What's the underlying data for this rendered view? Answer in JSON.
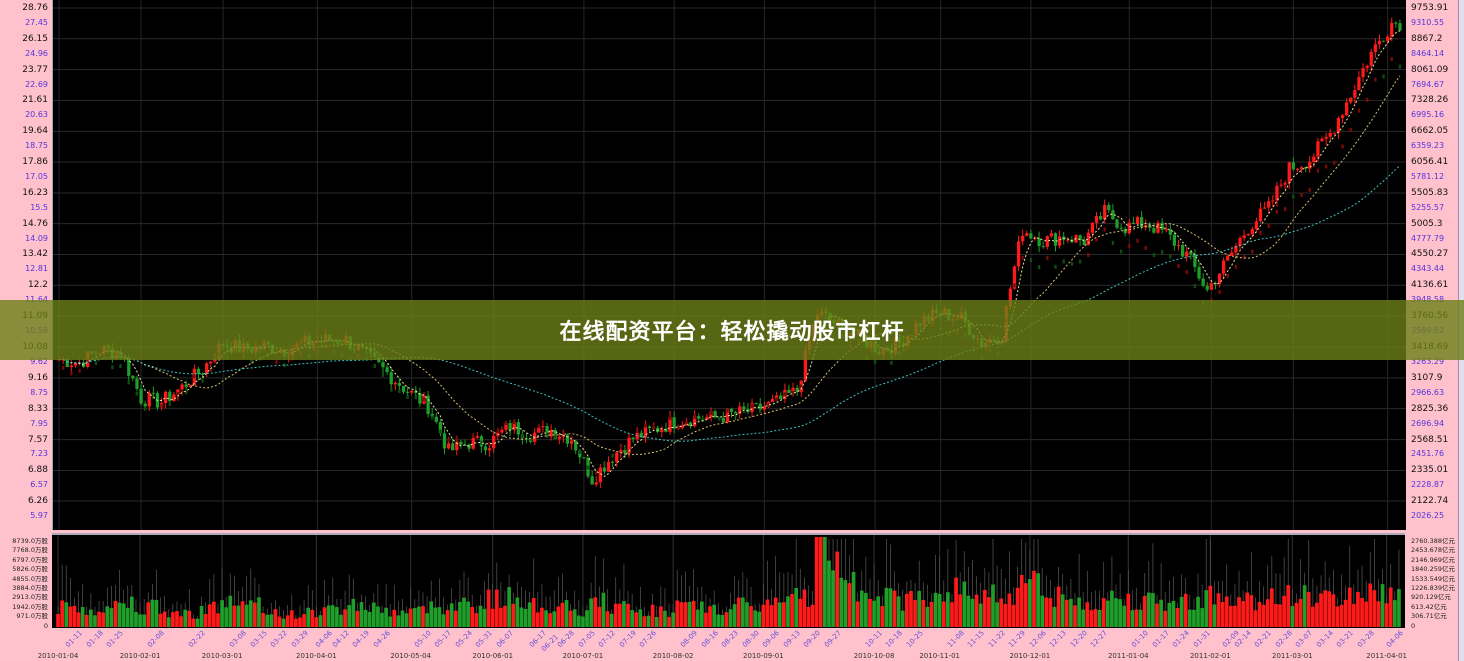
{
  "banner": {
    "text": "在线配资平台：轻松撬动股市杠杆"
  },
  "colors": {
    "up": "#ff1a1a",
    "down": "#1f9e2a",
    "background": "#000000",
    "axis_bg": "#ffc2cc",
    "banner": "#6c8016",
    "ma_short": "#e8e8a0",
    "ma_long": "#40c0c0"
  },
  "chart_data": [
    {
      "type": "candlestick",
      "scale": "log",
      "grid": true,
      "left_axis_ticks": [
        "28.76",
        "27.45",
        "26.15",
        "24.96",
        "23.77",
        "22.69",
        "21.61",
        "20.63",
        "19.64",
        "18.75",
        "17.86",
        "17.05",
        "16.23",
        "15.5",
        "14.76",
        "14.09",
        "13.42",
        "12.81",
        "12.2",
        "11.64",
        "11.09",
        "10.58",
        "10.08",
        "9.62",
        "9.16",
        "8.75",
        "8.33",
        "7.95",
        "7.57",
        "7.23",
        "6.88",
        "6.57",
        "6.26",
        "5.97"
      ],
      "right_axis_ticks": [
        "9753.91",
        "9310.55",
        "8867.2",
        "8464.14",
        "8061.09",
        "7694.67",
        "7328.26",
        "6995.16",
        "6662.05",
        "6359.23",
        "6056.41",
        "5781.12",
        "5505.83",
        "5255.57",
        "5005.3",
        "4777.79",
        "4550.27",
        "4343.44",
        "4136.61",
        "3948.58",
        "3760.56",
        "3589.62",
        "3418.69",
        "3263.29",
        "3107.9",
        "2966.63",
        "2825.36",
        "2696.94",
        "2568.51",
        "2451.76",
        "2335.01",
        "2228.87",
        "2122.74",
        "2026.25"
      ],
      "ylim": [
        5.97,
        28.76
      ],
      "weekly_close": [
        [
          "2010-01-04",
          9.7
        ],
        [
          "2010-01-11",
          9.6
        ],
        [
          "2010-01-18",
          10.0
        ],
        [
          "2010-01-25",
          9.9
        ],
        [
          "2010-02-01",
          8.6
        ],
        [
          "2010-02-08",
          8.5
        ],
        [
          "2010-02-15",
          8.9
        ],
        [
          "2010-02-22",
          9.4
        ],
        [
          "2010-03-01",
          10.2
        ],
        [
          "2010-03-08",
          10.0
        ],
        [
          "2010-03-15",
          10.1
        ],
        [
          "2010-03-22",
          10.0
        ],
        [
          "2010-03-29",
          10.2
        ],
        [
          "2010-04-05",
          10.3
        ],
        [
          "2010-04-12",
          10.3
        ],
        [
          "2010-04-19",
          9.8
        ],
        [
          "2010-04-26",
          9.3
        ],
        [
          "2010-05-03",
          8.8
        ],
        [
          "2010-05-10",
          8.4
        ],
        [
          "2010-05-17",
          7.3
        ],
        [
          "2010-05-24",
          7.5
        ],
        [
          "2010-05-31",
          7.5
        ],
        [
          "2010-06-07",
          7.9
        ],
        [
          "2010-06-14",
          7.7
        ],
        [
          "2010-06-21",
          7.8
        ],
        [
          "2010-06-28",
          7.6
        ],
        [
          "2010-07-05",
          6.7
        ],
        [
          "2010-07-12",
          7.2
        ],
        [
          "2010-07-19",
          7.6
        ],
        [
          "2010-07-26",
          7.8
        ],
        [
          "2010-08-02",
          8.0
        ],
        [
          "2010-08-09",
          8.1
        ],
        [
          "2010-08-16",
          8.1
        ],
        [
          "2010-08-23",
          8.2
        ],
        [
          "2010-08-30",
          8.3
        ],
        [
          "2010-09-06",
          8.5
        ],
        [
          "2010-09-13",
          8.8
        ],
        [
          "2010-09-20",
          11.2
        ],
        [
          "2010-09-27",
          10.8
        ],
        [
          "2010-10-04",
          10.4
        ],
        [
          "2010-10-11",
          10.0
        ],
        [
          "2010-10-18",
          10.2
        ],
        [
          "2010-10-25",
          10.9
        ],
        [
          "2010-11-01",
          11.2
        ],
        [
          "2010-11-08",
          11.0
        ],
        [
          "2010-11-15",
          10.2
        ],
        [
          "2010-11-22",
          10.5
        ],
        [
          "2010-11-29",
          14.5
        ],
        [
          "2010-12-06",
          14.0
        ],
        [
          "2010-12-13",
          14.2
        ],
        [
          "2010-12-20",
          14.0
        ],
        [
          "2010-12-27",
          15.3
        ],
        [
          "2011-01-03",
          14.6
        ],
        [
          "2011-01-10",
          14.8
        ],
        [
          "2011-01-17",
          14.3
        ],
        [
          "2011-01-24",
          13.4
        ],
        [
          "2011-01-31",
          12.0
        ],
        [
          "2011-02-07",
          13.2
        ],
        [
          "2011-02-14",
          14.6
        ],
        [
          "2011-02-21",
          15.5
        ],
        [
          "2011-02-28",
          17.5
        ],
        [
          "2011-03-07",
          18.0
        ],
        [
          "2011-03-14",
          19.5
        ],
        [
          "2011-03-21",
          22.0
        ],
        [
          "2011-03-28",
          25.0
        ],
        [
          "2011-04-04",
          27.5
        ]
      ],
      "x_start": "2010-01-04",
      "x_end": "2011-04-06"
    },
    {
      "type": "bar",
      "left_axis_ticks": [
        "8739.0万股",
        "7768.0万股",
        "6797.0万股",
        "5826.0万股",
        "4855.0万股",
        "3884.0万股",
        "2913.0万股",
        "1942.0万股",
        "971.0万股",
        "0"
      ],
      "right_axis_ticks": [
        "2760.388亿元",
        "2453.678亿元",
        "2146.969亿元",
        "1840.259亿元",
        "1533.549亿元",
        "1226.839亿元",
        "920.129亿元",
        "613.42亿元",
        "306.71亿元",
        "0"
      ],
      "ylim": [
        0,
        8739
      ],
      "weekly_volume": [
        2000,
        1800,
        2200,
        2600,
        2100,
        1500,
        1400,
        2000,
        2600,
        2200,
        1600,
        1300,
        1500,
        1800,
        2400,
        2000,
        1600,
        1700,
        2100,
        2500,
        2300,
        2900,
        3000,
        2200,
        2000,
        1500,
        2600,
        2000,
        1700,
        1700,
        2100,
        2000,
        1800,
        2200,
        2300,
        2600,
        3300,
        8500,
        6000,
        4200,
        3000,
        2800,
        3200,
        3800,
        3600,
        3500,
        3300,
        5500,
        3000,
        2600,
        2500,
        3000,
        2800,
        2600,
        2400,
        2800,
        3200,
        2500,
        2800,
        3400,
        3200,
        3000,
        2900,
        3300,
        3500,
        3600
      ]
    }
  ],
  "x_axis": {
    "ticks": [
      [
        "2010-01-04",
        true
      ],
      [
        "2010-01-11",
        false,
        "01-11"
      ],
      [
        "2010-01-18",
        false,
        "01-18"
      ],
      [
        "2010-01-25",
        false,
        "01-25"
      ],
      [
        "2010-02-01",
        true
      ],
      [
        "2010-02-08",
        false,
        "02-08"
      ],
      [
        "2010-02-22",
        false,
        "02-22"
      ],
      [
        "2010-03-01",
        true
      ],
      [
        "2010-03-08",
        false,
        "03-08"
      ],
      [
        "2010-03-15",
        false,
        "03-15"
      ],
      [
        "2010-03-22",
        false,
        "03-22"
      ],
      [
        "2010-03-29",
        false,
        "03-29"
      ],
      [
        "2010-04-01",
        true
      ],
      [
        "2010-04-06",
        false,
        "04-06"
      ],
      [
        "2010-04-12",
        false,
        "04-12"
      ],
      [
        "2010-04-19",
        false,
        "04-19"
      ],
      [
        "2010-04-26",
        false,
        "04-26"
      ],
      [
        "2010-05-04",
        true
      ],
      [
        "2010-05-10",
        false,
        "05-10"
      ],
      [
        "2010-05-17",
        false,
        "05-17"
      ],
      [
        "2010-05-24",
        false,
        "05-24"
      ],
      [
        "2010-05-31",
        false,
        "05-31"
      ],
      [
        "2010-06-01",
        true
      ],
      [
        "2010-06-07",
        false,
        "06-07"
      ],
      [
        "2010-06-17",
        false,
        "06-17"
      ],
      [
        "2010-06-21",
        false,
        "06-21"
      ],
      [
        "2010-06-28",
        false,
        "06-28"
      ],
      [
        "2010-07-01",
        true
      ],
      [
        "2010-07-05",
        false,
        "07-05"
      ],
      [
        "2010-07-12",
        false,
        "07-12"
      ],
      [
        "2010-07-19",
        false,
        "07-19"
      ],
      [
        "2010-07-26",
        false,
        "07-26"
      ],
      [
        "2010-08-02",
        true
      ],
      [
        "2010-08-09",
        false,
        "08-09"
      ],
      [
        "2010-08-16",
        false,
        "08-16"
      ],
      [
        "2010-08-23",
        false,
        "08-23"
      ],
      [
        "2010-08-30",
        false,
        "08-30"
      ],
      [
        "2010-09-01",
        true
      ],
      [
        "2010-09-06",
        false,
        "09-06"
      ],
      [
        "2010-09-13",
        false,
        "09-13"
      ],
      [
        "2010-09-20",
        false,
        "09-20"
      ],
      [
        "2010-09-27",
        false,
        "09-27"
      ],
      [
        "2010-10-08",
        true
      ],
      [
        "2010-10-11",
        false,
        "10-11"
      ],
      [
        "2010-10-18",
        false,
        "10-18"
      ],
      [
        "2010-10-25",
        false,
        "10-25"
      ],
      [
        "2010-11-01",
        true
      ],
      [
        "2010-11-08",
        false,
        "11-08"
      ],
      [
        "2010-11-15",
        false,
        "11-15"
      ],
      [
        "2010-11-22",
        false,
        "11-22"
      ],
      [
        "2010-11-29",
        false,
        "11-29"
      ],
      [
        "2010-12-01",
        true
      ],
      [
        "2010-12-06",
        false,
        "12-06"
      ],
      [
        "2010-12-13",
        false,
        "12-13"
      ],
      [
        "2010-12-20",
        false,
        "12-20"
      ],
      [
        "2010-12-27",
        false,
        "12-27"
      ],
      [
        "2011-01-04",
        true
      ],
      [
        "2011-01-10",
        false,
        "01-10"
      ],
      [
        "2011-01-17",
        false,
        "01-17"
      ],
      [
        "2011-01-24",
        false,
        "01-24"
      ],
      [
        "2011-01-31",
        false,
        "01-31"
      ],
      [
        "2011-02-01",
        true
      ],
      [
        "2011-02-09",
        false,
        "02-09"
      ],
      [
        "2011-02-14",
        false,
        "02-14"
      ],
      [
        "2011-02-21",
        false,
        "02-21"
      ],
      [
        "2011-02-28",
        false,
        "02-28"
      ],
      [
        "2011-03-01",
        true
      ],
      [
        "2011-03-07",
        false,
        "03-07"
      ],
      [
        "2011-03-14",
        false,
        "03-14"
      ],
      [
        "2011-03-21",
        false,
        "03-21"
      ],
      [
        "2011-03-28",
        false,
        "03-28"
      ],
      [
        "2011-04-01",
        true
      ],
      [
        "2011-04-06",
        false,
        "04-06"
      ]
    ]
  }
}
